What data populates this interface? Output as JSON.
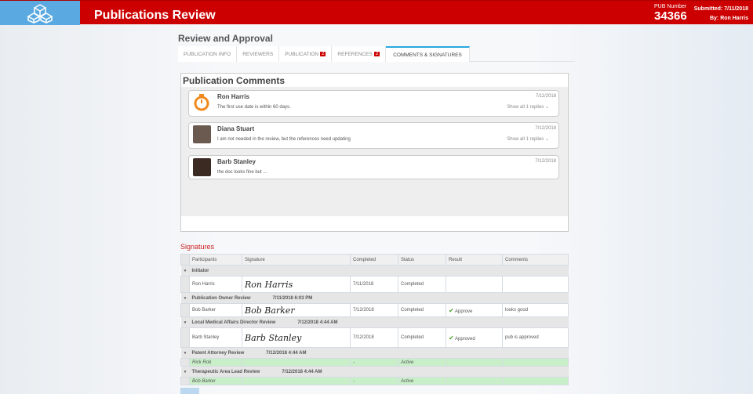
{
  "header": {
    "title": "Publications Review",
    "pub_label": "PUB Number",
    "pub_number": "34366",
    "submitted_label": "Submitted:",
    "submitted_date": "7/11/2018",
    "by_label": "By:",
    "by_name": "Ron Harris",
    "logo_icon": "cubes-icon",
    "color": "#cc0000"
  },
  "section_title": "Review and Approval",
  "tabs": [
    {
      "label": "PUBLICATION INFO"
    },
    {
      "label": "REVIEWERS"
    },
    {
      "label": "PUBLICATION",
      "badge": "2"
    },
    {
      "label": "REFERENCES",
      "badge": "2"
    },
    {
      "label": "COMMENTS & SIGNATURES",
      "active": true
    }
  ],
  "comments": {
    "title": "Publication Comments",
    "items": [
      {
        "name": "Ron Harris",
        "text": "The first use date is within 60 days.",
        "date": "7/11/2018",
        "replies": "Show all 1 replies",
        "avatar": "stopwatch-icon"
      },
      {
        "name": "Diana Stuart",
        "text": "I am not needed in the review, but the references need updating",
        "date": "7/12/2018",
        "replies": "Show all 1 replies",
        "avatar": "photo"
      },
      {
        "name": "Barb Stanley",
        "text": "the doc looks fine but ...",
        "date": "7/12/2018",
        "avatar": "photo"
      }
    ]
  },
  "signatures": {
    "title": "Signatures",
    "columns": [
      "Participants",
      "Signature",
      "Completed",
      "Status",
      "Result",
      "Comments"
    ],
    "groups": [
      {
        "name": "Initiator",
        "date": "",
        "rows": [
          {
            "participant": "Ron Harris",
            "signature": "Ron Harris",
            "completed": "7/11/2018",
            "status": "Completed",
            "result": "",
            "comments": ""
          }
        ]
      },
      {
        "name": "Publication Owner Review",
        "date": "7/11/2018 6:03 PM",
        "rows": [
          {
            "participant": "Bob Barker",
            "signature": "Bob Barker",
            "completed": "7/12/2018",
            "status": "Completed",
            "result": "Approve",
            "comments": "looks good"
          }
        ]
      },
      {
        "name": "Local Medical Affairs Director Review",
        "date": "7/12/2018 4:44 AM",
        "rows": [
          {
            "participant": "Barb Stanley",
            "signature": "Barb Stanley",
            "completed": "7/12/2018",
            "status": "Completed",
            "result": "Approved",
            "comments": "pub is approved"
          }
        ]
      },
      {
        "name": "Patent Attorney Review",
        "date": "7/12/2018 4:44 AM",
        "rows": [
          {
            "participant": "Rick Rob",
            "signature": "",
            "completed": "-",
            "status": "Active",
            "result": "",
            "comments": ""
          }
        ]
      },
      {
        "name": "Therapeutic Area Lead Review",
        "date": "7/12/2018 4:44 AM",
        "rows": [
          {
            "participant": "Bob Barker",
            "signature": "",
            "completed": "-",
            "status": "Active",
            "result": "",
            "comments": ""
          }
        ]
      }
    ]
  }
}
